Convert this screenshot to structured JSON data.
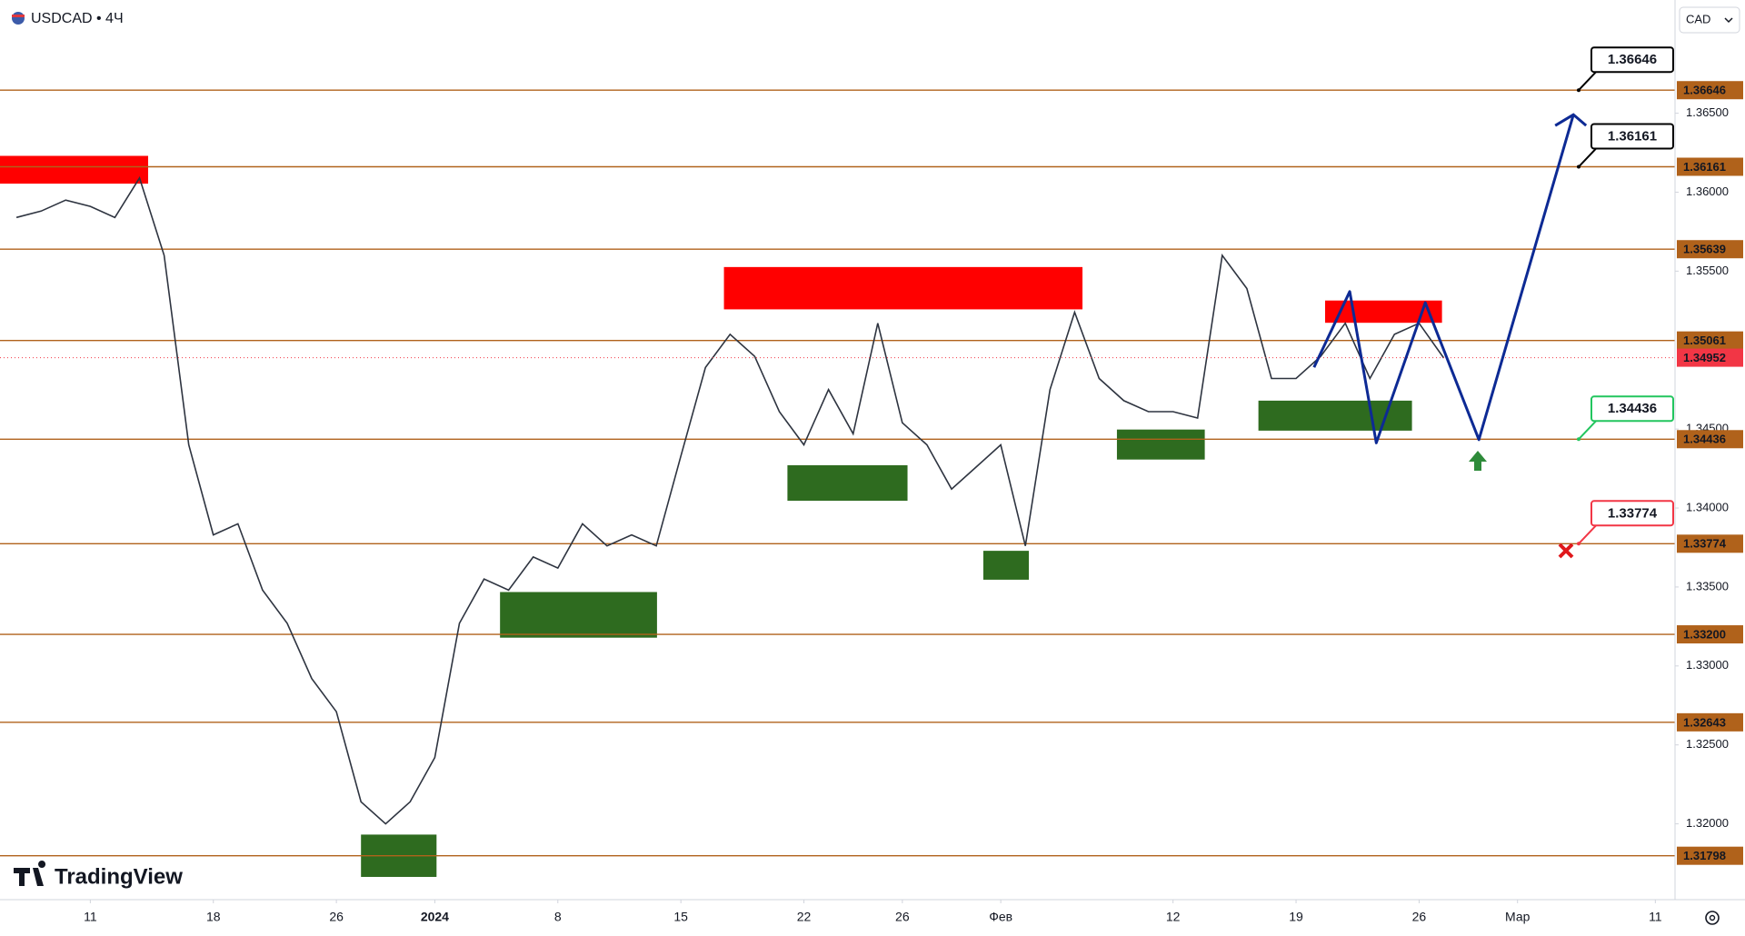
{
  "chart_data": {
    "type": "line",
    "title": "USDCAD • 4Ч",
    "currency": "CAD",
    "watermark": "TradingView",
    "xlim": [
      -3.67,
      64.4
    ],
    "ylim": [
      1.3152,
      1.37217
    ],
    "xticks": [
      {
        "value": 0,
        "label": "11"
      },
      {
        "value": 5,
        "label": "18"
      },
      {
        "value": 10,
        "label": "26"
      },
      {
        "value": 14,
        "label": "2024"
      },
      {
        "value": 19,
        "label": "8"
      },
      {
        "value": 24,
        "label": "15"
      },
      {
        "value": 29,
        "label": "22"
      },
      {
        "value": 33,
        "label": "26"
      },
      {
        "value": 37,
        "label": "Фев"
      },
      {
        "value": 44,
        "label": "12"
      },
      {
        "value": 49,
        "label": "19"
      },
      {
        "value": 54,
        "label": "26"
      },
      {
        "value": 58,
        "label": "Мар"
      },
      {
        "value": 63.6,
        "label": "11"
      }
    ],
    "yticks": [
      {
        "value": 1.32,
        "label": "1.32000"
      },
      {
        "value": 1.325,
        "label": "1.32500"
      },
      {
        "value": 1.33,
        "label": "1.33000"
      },
      {
        "value": 1.335,
        "label": "1.33500"
      },
      {
        "value": 1.34,
        "label": "1.34000"
      },
      {
        "value": 1.345,
        "label": "1.34500"
      },
      {
        "value": 1.355,
        "label": "1.35500"
      },
      {
        "value": 1.36,
        "label": "1.36000"
      },
      {
        "value": 1.365,
        "label": "1.36500"
      }
    ],
    "series": [
      {
        "color": "#2e3440",
        "x": [
          -3,
          -2,
          -1,
          0,
          1,
          2,
          3,
          4,
          5,
          6,
          7,
          8,
          9,
          10,
          11,
          12,
          13,
          14,
          15,
          16,
          17,
          18,
          19,
          20,
          21,
          22,
          23,
          24,
          25,
          26,
          27,
          28,
          29,
          30,
          31,
          32,
          33,
          34,
          35,
          36,
          37,
          38,
          39,
          40,
          41,
          42,
          43,
          44,
          45,
          46,
          47,
          48,
          49,
          50,
          51,
          52,
          53,
          54,
          55
        ],
        "values": [
          1.3584,
          1.3588,
          1.3595,
          1.3591,
          1.3584,
          1.3609,
          1.356,
          1.344,
          1.3383,
          1.339,
          1.3348,
          1.3327,
          1.3292,
          1.3271,
          1.3214,
          1.32,
          1.3214,
          1.3242,
          1.3327,
          1.3355,
          1.3348,
          1.3369,
          1.3362,
          1.339,
          1.3376,
          1.3383,
          1.3376,
          1.3433,
          1.3489,
          1.351,
          1.3496,
          1.3461,
          1.344,
          1.3475,
          1.3447,
          1.3517,
          1.3454,
          1.344,
          1.3412,
          1.3426,
          1.344,
          1.3376,
          1.3475,
          1.3524,
          1.3482,
          1.3468,
          1.3461,
          1.3461,
          1.3457,
          1.356,
          1.3539,
          1.3482,
          1.3482,
          1.3496,
          1.3517,
          1.3482,
          1.351,
          1.3517,
          1.3495
        ]
      }
    ],
    "last_price": 1.34952,
    "last_price_color": "#f23645",
    "level_color": "#b0621b",
    "levels": [
      {
        "value": 1.36646,
        "label": "1.36646",
        "callout_color": "#000000"
      },
      {
        "value": 1.36161,
        "label": "1.36161",
        "callout_color": "#000000"
      },
      {
        "value": 1.35639,
        "label": "1.35639"
      },
      {
        "value": 1.35061,
        "label": "1.35061"
      },
      {
        "value": 1.34436,
        "label": "1.34436",
        "callout_color": "#22c55e"
      },
      {
        "value": 1.33774,
        "label": "1.33774",
        "callout_color": "#f23645"
      },
      {
        "value": 1.332,
        "label": "1.33200"
      },
      {
        "value": 1.32643,
        "label": "1.32643"
      },
      {
        "value": 1.31798,
        "label": "1.31798"
      }
    ],
    "supply_color": "#ff0000",
    "demand_color": "#2e6b1f",
    "supply_zones": [
      {
        "x": [
          -3.67,
          2.35
        ],
        "y": [
          1.36054,
          1.3623
        ]
      },
      {
        "x": [
          25.75,
          40.32
        ],
        "y": [
          1.35258,
          1.35526
        ]
      },
      {
        "x": [
          50.18,
          54.93
        ],
        "y": [
          1.35173,
          1.35314
        ]
      }
    ],
    "demand_zones": [
      {
        "x": [
          11.0,
          14.07
        ],
        "y": [
          1.31664,
          1.31932
        ]
      },
      {
        "x": [
          16.65,
          23.03
        ],
        "y": [
          1.33179,
          1.33468
        ]
      },
      {
        "x": [
          28.33,
          33.21
        ],
        "y": [
          1.34046,
          1.34271
        ]
      },
      {
        "x": [
          36.29,
          38.14
        ],
        "y": [
          1.33546,
          1.33729
        ]
      },
      {
        "x": [
          41.72,
          45.29
        ],
        "y": [
          1.34307,
          1.34497
        ]
      },
      {
        "x": [
          47.47,
          53.71
        ],
        "y": [
          1.3449,
          1.3468
        ]
      }
    ],
    "projection": {
      "color": "#0d2a94",
      "x": [
        49.73,
        51.18,
        52.26,
        54.25,
        56.43,
        60.27
      ],
      "values": [
        1.34891,
        1.35371,
        1.34412,
        1.353,
        1.34433,
        1.36491
      ]
    }
  }
}
